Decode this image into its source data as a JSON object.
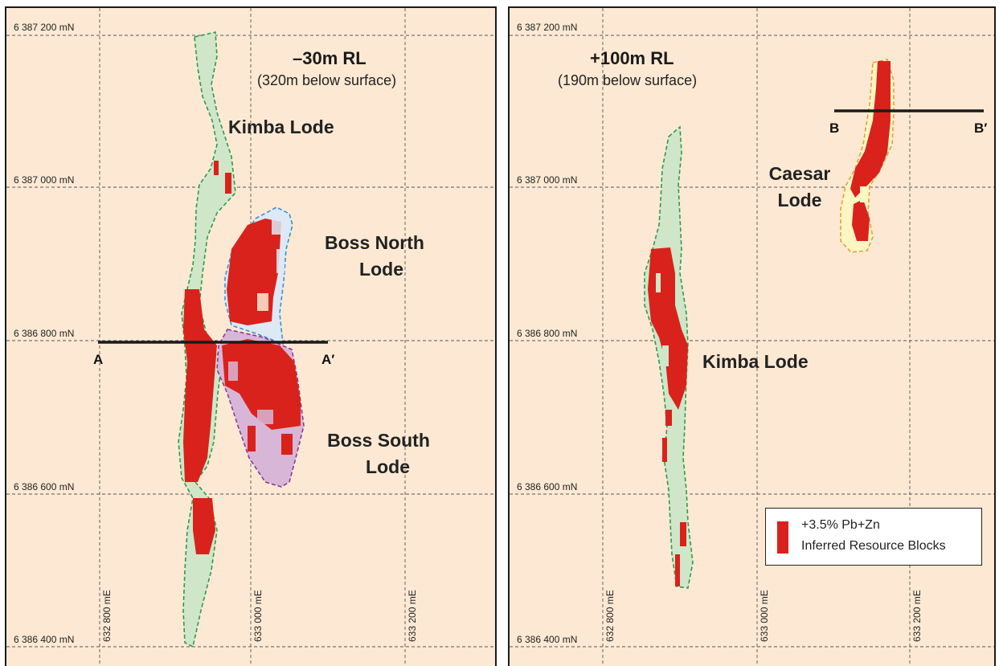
{
  "colors": {
    "background": "#fde9d3",
    "resource_blocks": "#d9221b",
    "kimba_fill": "#cfe6c9",
    "kimba_outline": "#2e9a4b",
    "boss_north_fill": "#dde9f5",
    "boss_north_outline": "#3b8fd4",
    "boss_south_fill": "#d8b6d8",
    "boss_south_outline": "#8a3a93",
    "caesar_fill": "#fdf6c2",
    "caesar_outline": "#e0a040"
  },
  "left_panel": {
    "title": "–30m RL",
    "subtitle": "(320m below surface)",
    "northings": [
      "6 387 200 mN",
      "6 387 000 mN",
      "6 386 800 mN",
      "6 386 600 mN",
      "6 386 400 mN"
    ],
    "eastings": [
      "632 800 mE",
      "633 000 mE",
      "633 200 mE"
    ],
    "lodes": {
      "kimba": "Kimba Lode",
      "boss_north_1": "Boss North",
      "boss_north_2": "Lode",
      "boss_south_1": "Boss South",
      "boss_south_2": "Lode"
    },
    "section": {
      "start": "A",
      "end": "A′"
    }
  },
  "right_panel": {
    "title": "+100m RL",
    "subtitle": "(190m below surface)",
    "northings": [
      "6 387 200 mN",
      "6 387 000 mN",
      "6 386 800 mN",
      "6 386 600 mN",
      "6 386 400 mN"
    ],
    "eastings": [
      "632 800 mE",
      "633 000 mE",
      "633 200 mE"
    ],
    "lodes": {
      "kimba": "Kimba Lode",
      "caesar_1": "Caesar",
      "caesar_2": "Lode"
    },
    "section": {
      "start": "B",
      "end": "B′"
    },
    "legend": {
      "line1": "+3.5% Pb+Zn",
      "line2": "Inferred Resource Blocks"
    }
  }
}
